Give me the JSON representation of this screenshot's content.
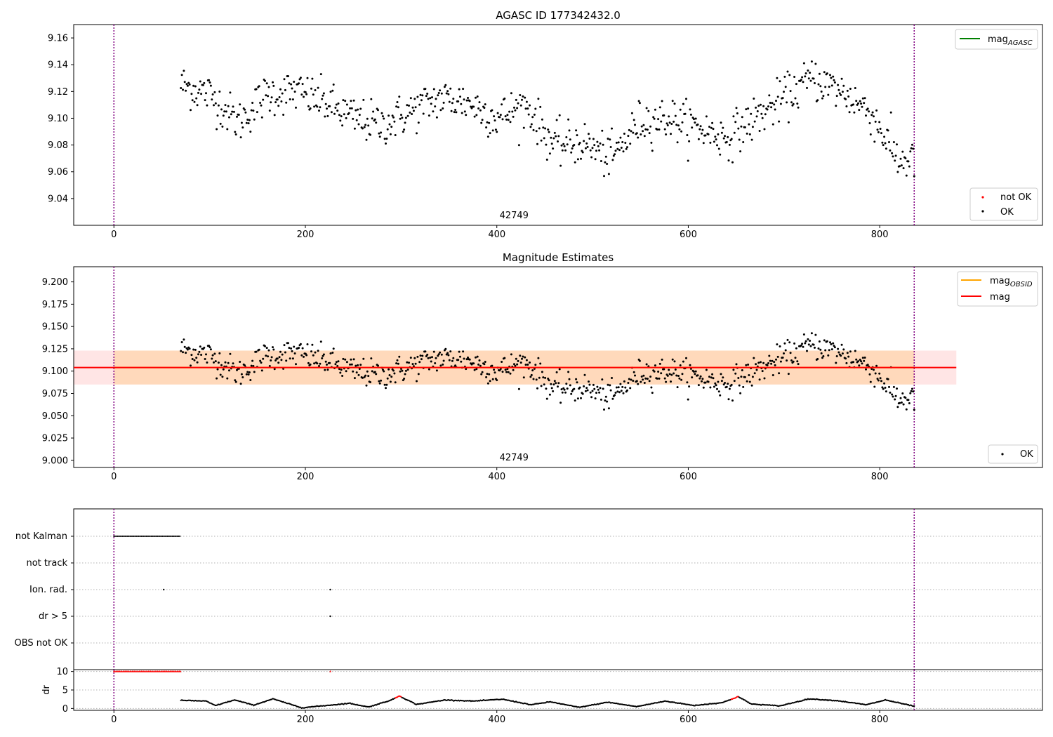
{
  "figure": {
    "panel1": {
      "title": "AGASC ID 177342432.0",
      "obsid_label": "42749",
      "legend_top": {
        "line_label": "mag",
        "line_sub": "AGASC",
        "line_color": "#008000"
      },
      "legend_bottom": {
        "items": [
          {
            "label": "not OK",
            "color": "#ff0000"
          },
          {
            "label": "OK",
            "color": "#000000"
          }
        ]
      }
    },
    "panel2": {
      "title": "Magnitude Estimates",
      "obsid_label": "42749",
      "legend_top": {
        "items": [
          {
            "label": "mag",
            "sub": "OBSID",
            "color": "#ffa500"
          },
          {
            "label": "mag",
            "sub": "",
            "color": "#ff0000"
          }
        ]
      },
      "legend_bottom": {
        "items": [
          {
            "label": "OK",
            "color": "#000000"
          }
        ]
      }
    },
    "panel3": {
      "flag_labels": [
        "not Kalman",
        "not track",
        "Ion. rad.",
        "dr > 5",
        "OBS not OK"
      ]
    },
    "panel4": {
      "ylabel": "dr"
    }
  },
  "chart_data": [
    {
      "type": "scatter",
      "title": "AGASC ID 177342432.0",
      "xlim": [
        -42,
        970
      ],
      "ylim": [
        9.02,
        9.17
      ],
      "xticks": [
        0,
        200,
        400,
        600,
        800
      ],
      "yticks": [
        9.04,
        9.06,
        9.08,
        9.1,
        9.12,
        9.14,
        9.16
      ],
      "ytick_labels": [
        "9.04",
        "9.06",
        "9.08",
        "9.10",
        "9.12",
        "9.14",
        "9.16"
      ],
      "obs_boundaries": [
        0,
        836
      ],
      "series": [
        {
          "name": "OK",
          "color": "#000000",
          "x_range": [
            70,
            836
          ],
          "n_points": 760,
          "trend_x": [
            70,
            100,
            130,
            160,
            190,
            220,
            250,
            280,
            310,
            340,
            370,
            400,
            430,
            460,
            490,
            520,
            550,
            580,
            610,
            640,
            670,
            700,
            730,
            760,
            790,
            820,
            836
          ],
          "trend_y": [
            9.125,
            9.118,
            9.097,
            9.118,
            9.12,
            9.112,
            9.1,
            9.095,
            9.105,
            9.115,
            9.112,
            9.1,
            9.11,
            9.08,
            9.082,
            9.07,
            9.098,
            9.1,
            9.093,
            9.085,
            9.1,
            9.115,
            9.13,
            9.12,
            9.105,
            9.068,
            9.07
          ],
          "scatter_sd": 0.008
        },
        {
          "name": "not OK",
          "color": "#ff0000",
          "n_points": 0
        }
      ],
      "annotations": [
        {
          "text": "42749",
          "x": 418
        }
      ]
    },
    {
      "type": "scatter",
      "title": "Magnitude Estimates",
      "xlim": [
        -42,
        970
      ],
      "ylim": [
        8.992,
        9.217
      ],
      "xticks": [
        0,
        200,
        400,
        600,
        800
      ],
      "yticks": [
        9.0,
        9.025,
        9.05,
        9.075,
        9.1,
        9.125,
        9.15,
        9.175,
        9.2
      ],
      "ytick_labels": [
        "9.000",
        "9.025",
        "9.050",
        "9.075",
        "9.100",
        "9.125",
        "9.150",
        "9.175",
        "9.200"
      ],
      "mag": 9.104,
      "mag_band": [
        9.085,
        9.123
      ],
      "mag_x_range": [
        -42,
        880
      ],
      "mag_obsid": 9.104,
      "mag_obsid_band": [
        9.085,
        9.123
      ],
      "mag_obsid_x_range": [
        0,
        836
      ],
      "annotations": [
        {
          "text": "42749",
          "x": 418
        }
      ]
    },
    {
      "type": "scatter",
      "title": "",
      "xlim": [
        -42,
        970
      ],
      "categories": [
        "not Kalman",
        "not track",
        "Ion. rad.",
        "dr > 5",
        "OBS not OK"
      ],
      "flags": [
        {
          "category": "not Kalman",
          "x_range": [
            0,
            70
          ]
        },
        {
          "category": "Ion. rad.",
          "x": [
            52,
            226
          ]
        },
        {
          "category": "dr > 5",
          "x": [
            226
          ]
        }
      ]
    },
    {
      "type": "scatter",
      "ylabel": "dr",
      "xlim": [
        -42,
        970
      ],
      "ylim": [
        -0.5,
        10.5
      ],
      "xticks": [
        0,
        200,
        400,
        600,
        800
      ],
      "yticks": [
        0,
        5,
        10
      ],
      "ytick_labels": [
        "0",
        "5",
        "10"
      ],
      "clipped_value": 10,
      "clipped_x_range": [
        0,
        70
      ],
      "clipped_extra_x": [
        226
      ],
      "segments_x": [
        70,
        96,
        106,
        126,
        146,
        166,
        196,
        226,
        246,
        266,
        290,
        298,
        316,
        346,
        376,
        406,
        436,
        456,
        486,
        516,
        546,
        576,
        606,
        636,
        652,
        666,
        696,
        726,
        756,
        786,
        806,
        836
      ],
      "segments_y": [
        2.2,
        2.0,
        0.8,
        2.3,
        0.9,
        2.6,
        0.2,
        0.9,
        1.4,
        0.4,
        2.3,
        3.4,
        1.1,
        2.3,
        2.0,
        2.5,
        1.0,
        1.8,
        0.3,
        1.7,
        0.5,
        2.0,
        0.8,
        1.6,
        3.2,
        1.2,
        0.7,
        2.6,
        2.1,
        1.0,
        2.3,
        0.6
      ],
      "red_x_ranges": [
        [
          294,
          300
        ],
        [
          645,
          652
        ]
      ]
    }
  ]
}
